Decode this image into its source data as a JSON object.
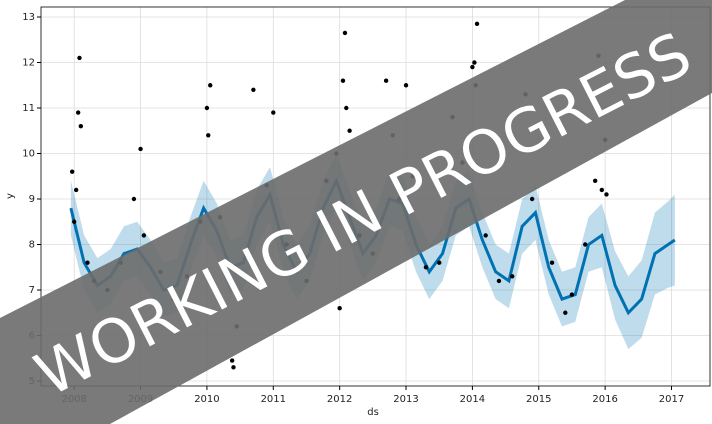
{
  "chart_data": {
    "type": "forecast",
    "xlabel": "ds",
    "ylabel": "y",
    "xlim": [
      2007.5,
      2017.58
    ],
    "ylim": [
      4.89,
      13.22
    ],
    "xticks": [
      2008,
      2009,
      2010,
      2011,
      2012,
      2013,
      2014,
      2015,
      2016,
      2017
    ],
    "yticks": [
      5,
      6,
      7,
      8,
      9,
      10,
      11,
      12,
      13
    ],
    "grid": true,
    "line_color": "#0072B2",
    "band_color": "#0072B2",
    "point_color": "#000000",
    "x": [
      2007.95,
      2008.15,
      2008.35,
      2008.55,
      2008.75,
      2008.95,
      2009.15,
      2009.35,
      2009.55,
      2009.75,
      2009.95,
      2010.15,
      2010.35,
      2010.55,
      2010.75,
      2010.95,
      2011.15,
      2011.35,
      2011.55,
      2011.75,
      2011.95,
      2012.15,
      2012.35,
      2012.55,
      2012.75,
      2012.95,
      2013.15,
      2013.35,
      2013.55,
      2013.75,
      2013.95,
      2014.15,
      2014.35,
      2014.55,
      2014.75,
      2014.95,
      2015.15,
      2015.35,
      2015.55,
      2015.75,
      2015.95,
      2016.15,
      2016.35,
      2016.55,
      2016.75,
      2016.95,
      2017.05
    ],
    "yhat": [
      8.8,
      7.6,
      7.1,
      7.3,
      7.8,
      7.9,
      7.5,
      7.0,
      7.1,
      8.0,
      8.8,
      8.3,
      7.5,
      7.6,
      8.6,
      9.1,
      8.0,
      7.4,
      7.8,
      8.8,
      9.4,
      8.6,
      7.8,
      8.2,
      9.0,
      8.9,
      8.0,
      7.4,
      7.8,
      8.8,
      9.0,
      8.1,
      7.4,
      7.2,
      8.4,
      8.7,
      7.5,
      6.8,
      6.9,
      8.0,
      8.2,
      7.1,
      6.5,
      6.8,
      7.8,
      8.0,
      8.1
    ],
    "yhat_lower": [
      8.2,
      7.0,
      6.5,
      6.7,
      7.2,
      7.3,
      6.9,
      6.4,
      6.5,
      7.4,
      8.2,
      7.7,
      6.9,
      7.0,
      8.0,
      8.5,
      7.4,
      6.8,
      7.2,
      8.2,
      8.8,
      8.0,
      7.2,
      7.6,
      8.4,
      8.3,
      7.4,
      6.8,
      7.2,
      8.2,
      8.4,
      7.5,
      6.8,
      6.6,
      7.8,
      8.1,
      6.9,
      6.2,
      6.3,
      7.4,
      7.5,
      6.35,
      5.7,
      5.95,
      6.9,
      7.05,
      7.1
    ],
    "yhat_upper": [
      9.4,
      8.2,
      7.7,
      7.9,
      8.4,
      8.5,
      8.1,
      7.6,
      7.7,
      8.6,
      9.4,
      8.9,
      8.1,
      8.2,
      9.2,
      9.7,
      8.6,
      8.0,
      8.4,
      9.4,
      10.0,
      9.2,
      8.4,
      8.8,
      9.6,
      9.5,
      8.6,
      8.0,
      8.4,
      9.4,
      9.6,
      8.7,
      8.0,
      7.8,
      9.0,
      9.3,
      8.1,
      7.4,
      7.5,
      8.6,
      8.9,
      7.85,
      7.3,
      7.65,
      8.7,
      8.95,
      9.1
    ],
    "points": {
      "x": [
        2007.97,
        2008.0,
        2008.03,
        2008.06,
        2008.08,
        2008.1,
        2008.2,
        2008.3,
        2008.5,
        2008.7,
        2008.9,
        2009.0,
        2009.05,
        2009.3,
        2009.5,
        2009.7,
        2009.9,
        2010.0,
        2010.02,
        2010.05,
        2010.2,
        2010.38,
        2010.4,
        2010.45,
        2010.7,
        2010.9,
        2011.0,
        2011.2,
        2011.5,
        2011.8,
        2011.95,
        2012.0,
        2012.05,
        2012.08,
        2012.1,
        2012.15,
        2012.3,
        2012.5,
        2012.7,
        2012.8,
        2012.9,
        2013.0,
        2013.1,
        2013.3,
        2013.5,
        2013.7,
        2013.85,
        2014.0,
        2014.03,
        2014.05,
        2014.07,
        2014.2,
        2014.4,
        2014.6,
        2014.8,
        2014.9,
        2015.05,
        2015.2,
        2015.4,
        2015.5,
        2015.7,
        2015.85,
        2015.9,
        2015.95,
        2016.0,
        2016.02
      ],
      "y": [
        9.6,
        8.5,
        9.2,
        10.9,
        12.1,
        10.6,
        7.6,
        7.2,
        7.0,
        7.6,
        9.0,
        10.1,
        8.2,
        7.4,
        6.8,
        7.3,
        8.5,
        11.0,
        10.4,
        11.5,
        8.6,
        5.45,
        5.3,
        6.2,
        11.4,
        9.3,
        10.9,
        8.0,
        7.2,
        9.4,
        10.0,
        6.6,
        11.6,
        12.65,
        11.0,
        10.5,
        8.2,
        7.8,
        11.6,
        10.4,
        9.0,
        11.5,
        9.5,
        7.5,
        7.6,
        10.8,
        9.8,
        11.9,
        12.0,
        11.5,
        12.85,
        8.2,
        7.2,
        7.3,
        11.3,
        9.0,
        10.6,
        7.6,
        6.5,
        6.9,
        8.0,
        9.4,
        12.15,
        9.2,
        10.3,
        9.1
      ]
    },
    "watermark": "WORKING IN PROGRESS"
  }
}
